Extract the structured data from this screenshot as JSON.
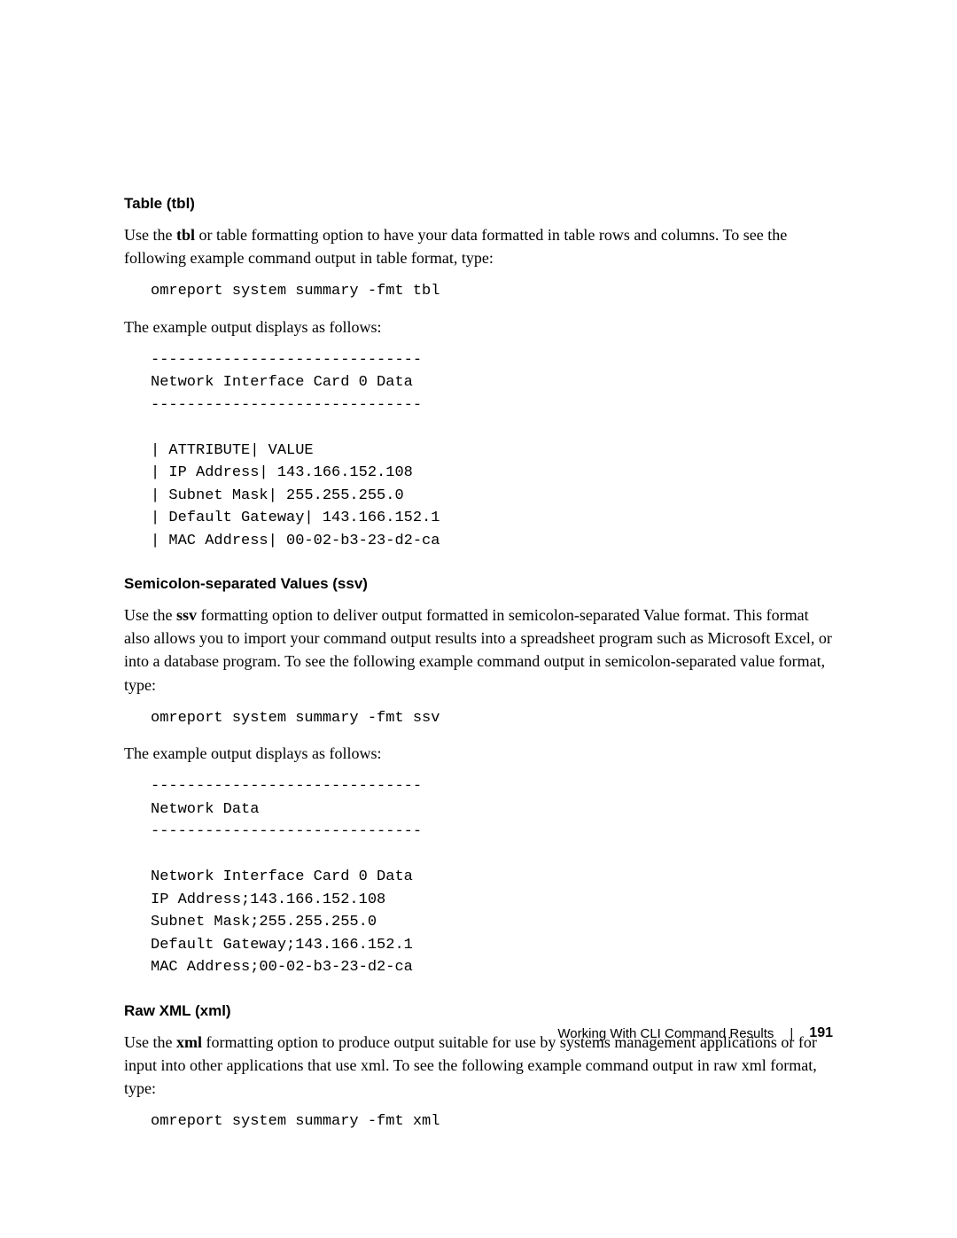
{
  "section1": {
    "heading": "Table (tbl)",
    "para1_part1": "Use the ",
    "para1_bold": "tbl",
    "para1_part2": " or table formatting option to have your data formatted in table rows and columns. To see the following example command output in table format, type:",
    "command": "omreport system summary -fmt tbl",
    "para2": "The example output displays as follows:",
    "output": "------------------------------\nNetwork Interface Card 0 Data\n------------------------------\n\n| ATTRIBUTE| VALUE\n| IP Address| 143.166.152.108\n| Subnet Mask| 255.255.255.0\n| Default Gateway| 143.166.152.1\n| MAC Address| 00-02-b3-23-d2-ca"
  },
  "section2": {
    "heading": "Semicolon-separated Values (ssv)",
    "para1_part1": "Use the ",
    "para1_bold": "ssv",
    "para1_part2": " formatting option to deliver output formatted in semicolon-separated Value format. This format also allows you to import your command output results into a spreadsheet program such as Microsoft Excel, or into a database program. To see the following example command output in semicolon-separated value format, type:",
    "command": "omreport system summary -fmt ssv",
    "para2": "The example output displays as follows:",
    "output": "------------------------------\nNetwork Data\n------------------------------\n\nNetwork Interface Card 0 Data\nIP Address;143.166.152.108\nSubnet Mask;255.255.255.0\nDefault Gateway;143.166.152.1\nMAC Address;00-02-b3-23-d2-ca"
  },
  "section3": {
    "heading": "Raw XML (xml)",
    "para1_part1": "Use the ",
    "para1_bold": "xml",
    "para1_part2": " formatting option to produce output suitable for use by systems management applications or for input into other applications that use xml. To see the following example command output in raw xml format, type:",
    "command": "omreport system summary -fmt xml"
  },
  "footer": {
    "title": "Working With CLI Command Results",
    "divider": "|",
    "page": "191"
  }
}
